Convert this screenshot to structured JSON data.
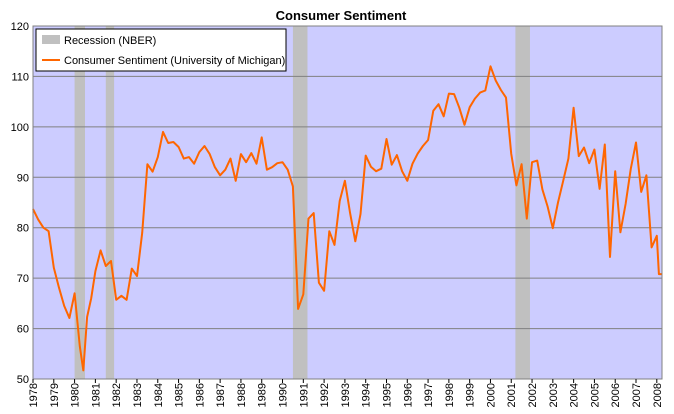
{
  "chart_data": {
    "type": "line",
    "title": "Consumer Sentiment",
    "xlabel": "",
    "ylabel": "",
    "xlim": [
      1978.0,
      2008.25
    ],
    "ylim": [
      50,
      120
    ],
    "yticks": [
      50,
      60,
      70,
      80,
      90,
      100,
      110,
      120
    ],
    "xticks": [
      "1978",
      "1979",
      "1980",
      "1981",
      "1982",
      "1983",
      "1984",
      "1985",
      "1986",
      "1987",
      "1988",
      "1989",
      "1990",
      "1991",
      "1992",
      "1993",
      "1994",
      "1995",
      "1996",
      "1997",
      "1998",
      "1999",
      "2000",
      "2001",
      "2002",
      "2003",
      "2004",
      "2005",
      "2006",
      "2007",
      "2008"
    ],
    "grid": true,
    "legend_position": "top-left",
    "colors": {
      "plot_background": "#ccccff",
      "line": "#ff6600",
      "recession": "#c0c0c0",
      "grid": "#808080"
    },
    "recessions": [
      {
        "start": 1980.0,
        "end": 1980.5
      },
      {
        "start": 1981.5,
        "end": 1981.9
      },
      {
        "start": 1990.5,
        "end": 1991.2
      },
      {
        "start": 2001.2,
        "end": 2001.9
      }
    ],
    "legend": [
      {
        "label": "Recession (NBER)",
        "kind": "band"
      },
      {
        "label": "Consumer Sentiment (University of Michigan)",
        "kind": "line"
      }
    ],
    "series": [
      {
        "name": "Consumer Sentiment (University of Michigan)",
        "points": [
          [
            1978.0,
            83.7
          ],
          [
            1978.25,
            81.6
          ],
          [
            1978.5,
            80.0
          ],
          [
            1978.75,
            79.3
          ],
          [
            1979.0,
            72.1
          ],
          [
            1979.25,
            68.1
          ],
          [
            1979.5,
            64.5
          ],
          [
            1979.75,
            62.1
          ],
          [
            1980.0,
            67.0
          ],
          [
            1980.25,
            56.5
          ],
          [
            1980.42,
            51.7
          ],
          [
            1980.6,
            62.3
          ],
          [
            1980.8,
            66.0
          ],
          [
            1981.0,
            71.4
          ],
          [
            1981.25,
            75.5
          ],
          [
            1981.5,
            72.4
          ],
          [
            1981.75,
            73.4
          ],
          [
            1982.0,
            65.7
          ],
          [
            1982.25,
            66.5
          ],
          [
            1982.5,
            65.7
          ],
          [
            1982.75,
            71.9
          ],
          [
            1983.0,
            70.4
          ],
          [
            1983.25,
            79.0
          ],
          [
            1983.5,
            92.6
          ],
          [
            1983.75,
            91.1
          ],
          [
            1984.0,
            94.0
          ],
          [
            1984.25,
            99.0
          ],
          [
            1984.5,
            96.8
          ],
          [
            1984.75,
            97.0
          ],
          [
            1985.0,
            96.0
          ],
          [
            1985.25,
            93.7
          ],
          [
            1985.5,
            94.0
          ],
          [
            1985.75,
            92.7
          ],
          [
            1986.0,
            95.0
          ],
          [
            1986.25,
            96.2
          ],
          [
            1986.5,
            94.6
          ],
          [
            1986.75,
            92.0
          ],
          [
            1987.0,
            90.4
          ],
          [
            1987.25,
            91.5
          ],
          [
            1987.5,
            93.7
          ],
          [
            1987.75,
            89.3
          ],
          [
            1988.0,
            94.6
          ],
          [
            1988.25,
            93.0
          ],
          [
            1988.5,
            94.8
          ],
          [
            1988.75,
            92.7
          ],
          [
            1989.0,
            97.9
          ],
          [
            1989.25,
            91.5
          ],
          [
            1989.5,
            92.0
          ],
          [
            1989.75,
            92.8
          ],
          [
            1990.0,
            93.0
          ],
          [
            1990.25,
            91.5
          ],
          [
            1990.5,
            88.2
          ],
          [
            1990.75,
            63.9
          ],
          [
            1991.0,
            66.8
          ],
          [
            1991.25,
            81.8
          ],
          [
            1991.5,
            82.9
          ],
          [
            1991.75,
            69.1
          ],
          [
            1992.0,
            67.5
          ],
          [
            1992.25,
            79.3
          ],
          [
            1992.5,
            76.6
          ],
          [
            1992.75,
            85.3
          ],
          [
            1993.0,
            89.3
          ],
          [
            1993.25,
            82.9
          ],
          [
            1993.5,
            77.3
          ],
          [
            1993.75,
            82.7
          ],
          [
            1994.0,
            94.3
          ],
          [
            1994.25,
            92.1
          ],
          [
            1994.5,
            91.2
          ],
          [
            1994.75,
            91.7
          ],
          [
            1995.0,
            97.6
          ],
          [
            1995.25,
            92.5
          ],
          [
            1995.5,
            94.4
          ],
          [
            1995.75,
            91.2
          ],
          [
            1996.0,
            89.3
          ],
          [
            1996.25,
            92.7
          ],
          [
            1996.5,
            94.7
          ],
          [
            1996.75,
            96.2
          ],
          [
            1997.0,
            97.4
          ],
          [
            1997.25,
            103.2
          ],
          [
            1997.5,
            104.5
          ],
          [
            1997.75,
            102.1
          ],
          [
            1998.0,
            106.6
          ],
          [
            1998.25,
            106.5
          ],
          [
            1998.5,
            103.8
          ],
          [
            1998.75,
            100.4
          ],
          [
            1999.0,
            103.9
          ],
          [
            1999.25,
            105.6
          ],
          [
            1999.5,
            106.8
          ],
          [
            1999.75,
            107.2
          ],
          [
            2000.0,
            112.0
          ],
          [
            2000.25,
            109.2
          ],
          [
            2000.5,
            107.3
          ],
          [
            2000.75,
            105.8
          ],
          [
            2001.0,
            94.7
          ],
          [
            2001.25,
            88.4
          ],
          [
            2001.5,
            92.6
          ],
          [
            2001.75,
            81.8
          ],
          [
            2002.0,
            93.0
          ],
          [
            2002.25,
            93.3
          ],
          [
            2002.5,
            87.6
          ],
          [
            2002.75,
            84.2
          ],
          [
            2003.0,
            79.9
          ],
          [
            2003.25,
            85.0
          ],
          [
            2003.5,
            89.3
          ],
          [
            2003.75,
            93.7
          ],
          [
            2004.0,
            103.8
          ],
          [
            2004.25,
            94.2
          ],
          [
            2004.5,
            95.9
          ],
          [
            2004.75,
            92.8
          ],
          [
            2005.0,
            95.5
          ],
          [
            2005.25,
            87.7
          ],
          [
            2005.5,
            96.5
          ],
          [
            2005.75,
            74.2
          ],
          [
            2006.0,
            91.2
          ],
          [
            2006.25,
            79.1
          ],
          [
            2006.5,
            84.7
          ],
          [
            2006.75,
            91.7
          ],
          [
            2007.0,
            96.9
          ],
          [
            2007.25,
            87.1
          ],
          [
            2007.5,
            90.4
          ],
          [
            2007.75,
            76.1
          ],
          [
            2008.0,
            78.4
          ],
          [
            2008.1,
            70.8
          ],
          [
            2008.25,
            70.8
          ]
        ]
      }
    ]
  }
}
